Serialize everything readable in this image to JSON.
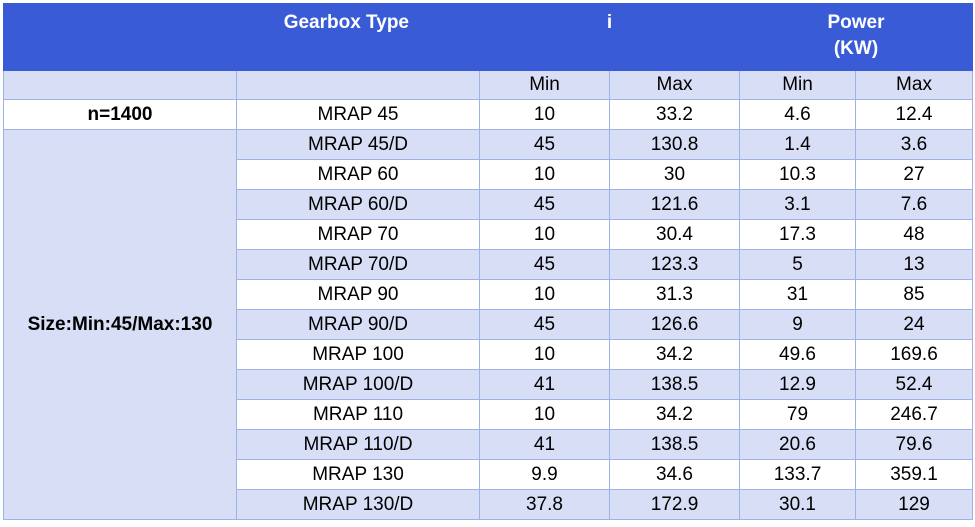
{
  "header": {
    "gearbox_type": "Gearbox Type",
    "i": "i",
    "power_line1": "Power",
    "power_line2": "(KW)"
  },
  "subheader": {
    "i_min": "Min",
    "i_max": "Max",
    "p_min": "Min",
    "p_max": "Max"
  },
  "side": {
    "speed": "n=1400",
    "size": "Size:Min:45/Max:130"
  },
  "rows": [
    {
      "type": "MRAP 45",
      "i_min": "10",
      "i_max": "33.2",
      "p_min": "4.6",
      "p_max": "12.4"
    },
    {
      "type": "MRAP 45/D",
      "i_min": "45",
      "i_max": "130.8",
      "p_min": "1.4",
      "p_max": "3.6"
    },
    {
      "type": "MRAP 60",
      "i_min": "10",
      "i_max": "30",
      "p_min": "10.3",
      "p_max": "27"
    },
    {
      "type": "MRAP 60/D",
      "i_min": "45",
      "i_max": "121.6",
      "p_min": "3.1",
      "p_max": "7.6"
    },
    {
      "type": "MRAP 70",
      "i_min": "10",
      "i_max": "30.4",
      "p_min": "17.3",
      "p_max": "48"
    },
    {
      "type": "MRAP 70/D",
      "i_min": "45",
      "i_max": "123.3",
      "p_min": "5",
      "p_max": "13"
    },
    {
      "type": "MRAP 90",
      "i_min": "10",
      "i_max": "31.3",
      "p_min": "31",
      "p_max": "85"
    },
    {
      "type": "MRAP 90/D",
      "i_min": "45",
      "i_max": "126.6",
      "p_min": "9",
      "p_max": "24"
    },
    {
      "type": "MRAP 100",
      "i_min": "10",
      "i_max": "34.2",
      "p_min": "49.6",
      "p_max": "169.6"
    },
    {
      "type": "MRAP 100/D",
      "i_min": "41",
      "i_max": "138.5",
      "p_min": "12.9",
      "p_max": "52.4"
    },
    {
      "type": "MRAP 110",
      "i_min": "10",
      "i_max": "34.2",
      "p_min": "79",
      "p_max": "246.7"
    },
    {
      "type": "MRAP 110/D",
      "i_min": "41",
      "i_max": "138.5",
      "p_min": "20.6",
      "p_max": "79.6"
    },
    {
      "type": "MRAP 130",
      "i_min": "9.9",
      "i_max": "34.6",
      "p_min": "133.7",
      "p_max": "359.1"
    },
    {
      "type": "MRAP 130/D",
      "i_min": "37.8",
      "i_max": "172.9",
      "p_min": "30.1",
      "p_max": "129"
    }
  ],
  "colors": {
    "header_bg": "#3a5bd6",
    "band_bg": "#d7def5",
    "border": "#9db2e6"
  }
}
